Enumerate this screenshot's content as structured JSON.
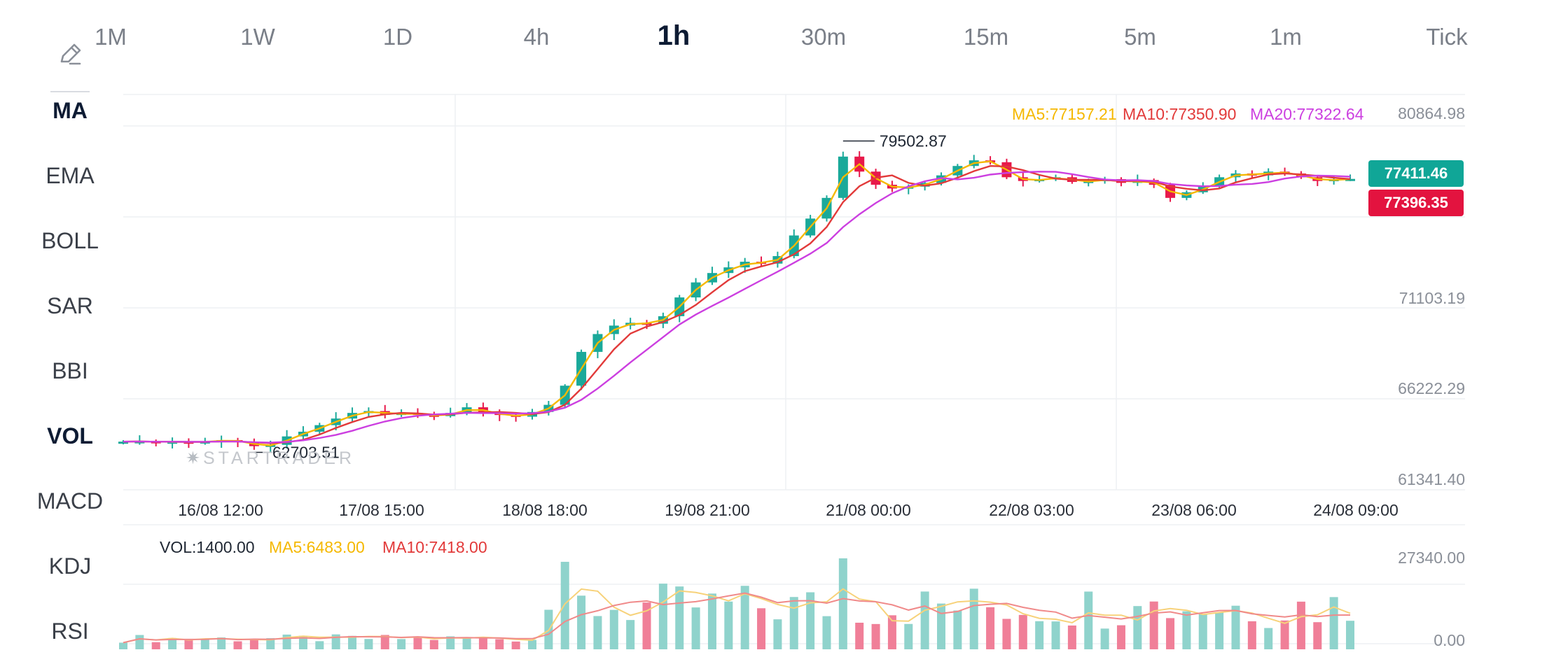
{
  "timeframes": [
    "1M",
    "1W",
    "1D",
    "4h",
    "1h",
    "30m",
    "15m",
    "5m",
    "1m",
    "Tick"
  ],
  "active_timeframe": "1h",
  "draw_icon": "pencil-icon",
  "indicators": [
    "MA",
    "EMA",
    "BOLL",
    "SAR",
    "BBI",
    "VOL",
    "MACD",
    "KDJ",
    "RSI"
  ],
  "active_indicators": [
    "MA",
    "VOL"
  ],
  "watermark": "STARTRADER",
  "main_legend": {
    "ma5": "MA5:77157.21",
    "ma10": "MA10:77350.90",
    "ma20": "MA20:77322.64"
  },
  "price_axis": [
    "80864.98",
    "71103.19",
    "66222.29",
    "61341.40"
  ],
  "current_price": "77411.46",
  "sell_price": "77396.35",
  "high_marker": "79502.87",
  "low_marker": "62703.51",
  "time_axis": [
    "16/08 12:00",
    "17/08 15:00",
    "18/08 18:00",
    "19/08 21:00",
    "21/08 00:00",
    "22/08 03:00",
    "23/08 06:00",
    "24/08 09:00"
  ],
  "vol_legend": {
    "vol": "VOL:1400.00",
    "ma5": "MA5:6483.00",
    "ma10": "MA10:7418.00"
  },
  "vol_axis": [
    "27340.00",
    "0.00"
  ],
  "colors": {
    "up": "#1aa99a",
    "down": "#e8194a",
    "ma5": "#f5b800",
    "ma10": "#e23a3a",
    "ma20": "#cc3fe0",
    "accent": "#0d1b33"
  },
  "chart_data": {
    "type": "candlestick",
    "x_range": [
      "16/08 12:00",
      "24/08 09:00"
    ],
    "y_range": [
      61341.4,
      80864.98
    ],
    "high": 79502.87,
    "low": 62703.51,
    "close_series": [
      63420,
      63440,
      63390,
      63420,
      63380,
      63430,
      63500,
      63420,
      63180,
      63250,
      63700,
      63950,
      64300,
      64650,
      64950,
      65050,
      64850,
      64950,
      64850,
      64780,
      64950,
      65250,
      64950,
      64850,
      64750,
      65000,
      65380,
      66400,
      68200,
      69150,
      69600,
      69750,
      69700,
      70100,
      71100,
      71900,
      72400,
      72700,
      73000,
      72900,
      73300,
      74400,
      75300,
      76400,
      78600,
      77800,
      77100,
      76900,
      77000,
      77200,
      77600,
      78100,
      78400,
      78300,
      77500,
      77300,
      77400,
      77500,
      77250,
      77300,
      77400,
      77200,
      77350,
      77100,
      76400,
      76700,
      77000,
      77500,
      77700,
      77600,
      77800,
      77700,
      77500,
      77300,
      77400,
      77411
    ],
    "volume_range": [
      0,
      27340.0
    ]
  }
}
